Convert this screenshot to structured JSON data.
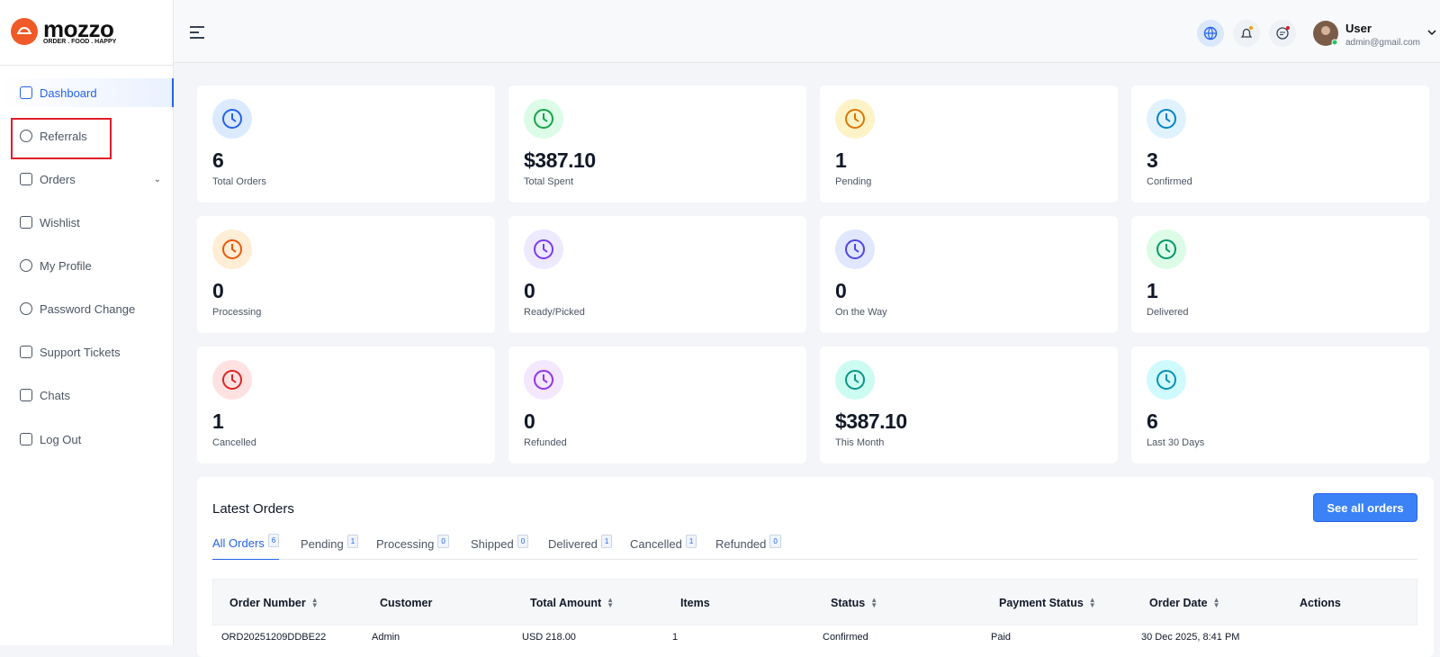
{
  "brand": {
    "name": "mozzo",
    "tagline": "ORDER . FOOD . HAPPY"
  },
  "sidebar": {
    "items": [
      "Dashboard",
      "Referrals",
      "Orders",
      "Wishlist",
      "My Profile",
      "Password Change",
      "Support Tickets",
      "Chats",
      "Log Out"
    ]
  },
  "user": {
    "name": "User",
    "email": "admin@gmail.com"
  },
  "stats": [
    {
      "value": "6",
      "label": "Total Orders"
    },
    {
      "value": "$387.10",
      "label": "Total Spent"
    },
    {
      "value": "1",
      "label": "Pending"
    },
    {
      "value": "3",
      "label": "Confirmed"
    },
    {
      "value": "0",
      "label": "Processing"
    },
    {
      "value": "0",
      "label": "Ready/Picked"
    },
    {
      "value": "0",
      "label": "On the Way"
    },
    {
      "value": "1",
      "label": "Delivered"
    },
    {
      "value": "1",
      "label": "Cancelled"
    },
    {
      "value": "0",
      "label": "Refunded"
    },
    {
      "value": "$387.10",
      "label": "This Month"
    },
    {
      "value": "6",
      "label": "Last 30 Days"
    }
  ],
  "orders": {
    "title": "Latest Orders",
    "button": "See all orders",
    "tabs": [
      {
        "label": "All Orders",
        "count": "6"
      },
      {
        "label": "Pending",
        "count": "1"
      },
      {
        "label": "Processing",
        "count": "0"
      },
      {
        "label": "Shipped",
        "count": "0"
      },
      {
        "label": "Delivered",
        "count": "1"
      },
      {
        "label": "Cancelled",
        "count": "1"
      },
      {
        "label": "Refunded",
        "count": "0"
      }
    ],
    "columns": [
      {
        "label": "Order Number",
        "sortable": true
      },
      {
        "label": "Customer",
        "sortable": false
      },
      {
        "label": "Total Amount",
        "sortable": true
      },
      {
        "label": "Items",
        "sortable": false
      },
      {
        "label": "Status",
        "sortable": true
      },
      {
        "label": "Payment Status",
        "sortable": true
      },
      {
        "label": "Order Date",
        "sortable": true
      },
      {
        "label": "Actions",
        "sortable": false
      }
    ],
    "rows": [
      [
        "ORD20251209DDBE22",
        "Admin",
        "USD 218.00",
        "1",
        "Confirmed",
        "Paid",
        "30 Dec 2025, 8:41 PM"
      ]
    ]
  }
}
